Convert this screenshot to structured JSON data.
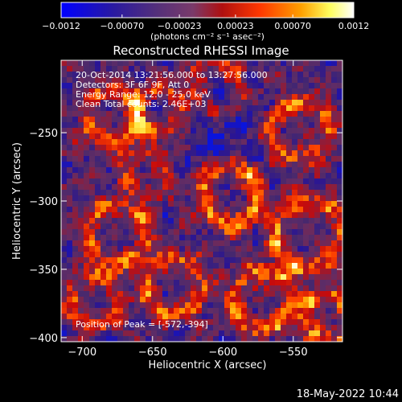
{
  "chart_data": {
    "type": "heatmap",
    "title": "Reconstructed RHESSI Image",
    "xlabel": "Heliocentric X (arcsec)",
    "ylabel": "Heliocentric Y (arcsec)",
    "xlim": [
      -715,
      -515
    ],
    "ylim": [
      -403,
      -197
    ],
    "x_ticks": [
      -700,
      -650,
      -600,
      -550
    ],
    "y_ticks": [
      -250,
      -300,
      -350,
      -400
    ],
    "x_tick_labels": [
      "−700",
      "−650",
      "−600",
      "−550"
    ],
    "y_tick_labels": [
      "−250",
      "−300",
      "−350",
      "−400"
    ],
    "colorbar": {
      "range": [
        -0.0012,
        0.0012
      ],
      "ticks": [
        -0.0012,
        -0.0007,
        -0.00023,
        0.00023,
        0.0007,
        0.0012
      ],
      "tick_labels": [
        "−0.0012",
        "−0.00070",
        "−0.00023",
        "0.00023",
        "0.00070",
        "0.0012"
      ],
      "unit_label": "(photons cm⁻² s⁻¹ asec⁻²)",
      "colors": [
        "#0000ff",
        "#4b0082",
        "#7f3f7f",
        "#c00000",
        "#ff4000",
        "#ffa000",
        "#ffff80",
        "#ffffff"
      ]
    },
    "annotations": [
      "20-Oct-2014 13:21:56.000 to 13:27:56.000",
      "Detectors: 3F 6F 9F, Att 0",
      "Energy Range: 12.0 - 25.0 keV",
      "Clean     Total counts: 2.46E+03"
    ],
    "peak_label": "Position of Peak = [-572,-394]",
    "peak": {
      "x": -572,
      "y": -394
    },
    "grid": false,
    "pixel_size_arcsec": 4
  },
  "footer": {
    "timestamp": "18-May-2022 10:44"
  }
}
